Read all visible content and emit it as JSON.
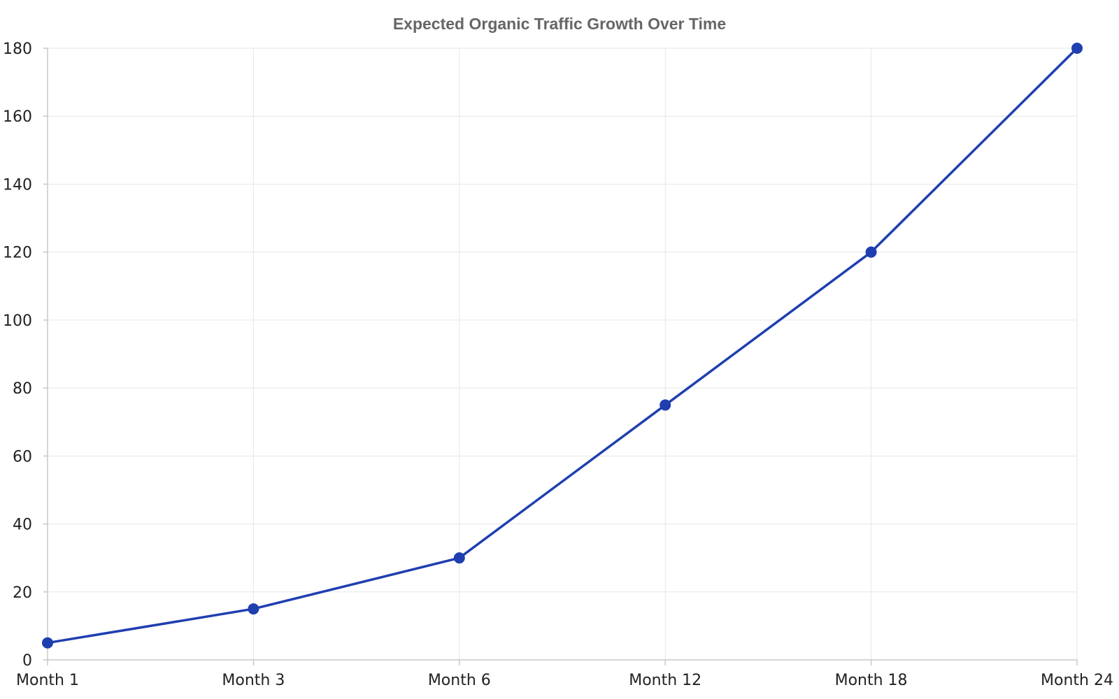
{
  "chart_data": {
    "type": "line",
    "title": "Expected Organic Traffic Growth Over Time",
    "xlabel": "",
    "ylabel": "",
    "categories": [
      "Month 1",
      "Month 3",
      "Month 6",
      "Month 12",
      "Month 18",
      "Month 24"
    ],
    "series": [
      {
        "values": [
          5,
          15,
          30,
          75,
          120,
          180
        ]
      }
    ],
    "ylim": [
      0,
      180
    ],
    "yticks": [
      0,
      20,
      40,
      60,
      80,
      100,
      120,
      140,
      160,
      180
    ],
    "grid": true,
    "legend": "none",
    "colors": {
      "series": "#1f3fb0",
      "title": "#666666",
      "grid": "#e6e6e6",
      "axis": "#c8c8c8",
      "tick_text": "#222222"
    }
  }
}
